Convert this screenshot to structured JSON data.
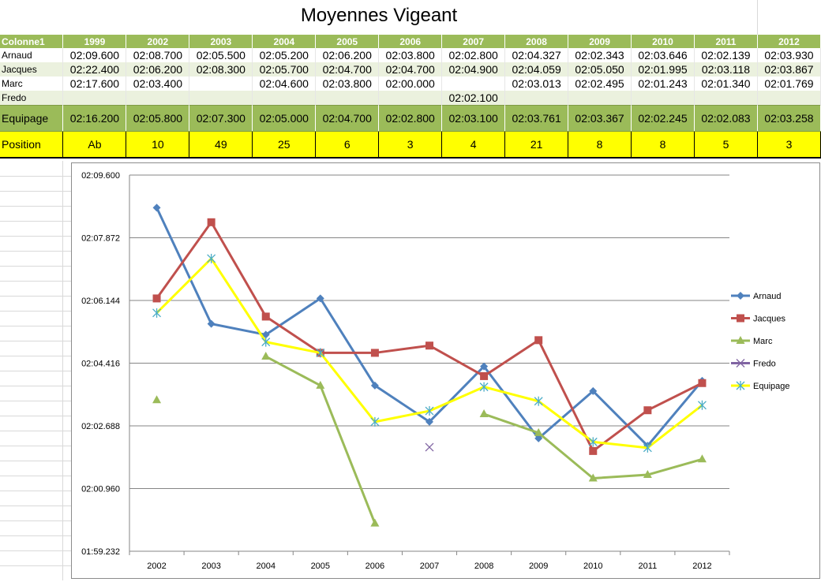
{
  "sheet": {
    "title": "Moyennes Vigeant",
    "header_first": "Colonne1",
    "years": [
      "1999",
      "2002",
      "2003",
      "2004",
      "2005",
      "2006",
      "2007",
      "2008",
      "2009",
      "2010",
      "2011",
      "2012"
    ],
    "rows": [
      {
        "name": "Arnaud",
        "values": [
          "02:09.600",
          "02:08.700",
          "02:05.500",
          "02:05.200",
          "02:06.200",
          "02:03.800",
          "02:02.800",
          "02:04.327",
          "02:02.343",
          "02:03.646",
          "02:02.139",
          "02:03.930"
        ]
      },
      {
        "name": "Jacques",
        "values": [
          "02:22.400",
          "02:06.200",
          "02:08.300",
          "02:05.700",
          "02:04.700",
          "02:04.700",
          "02:04.900",
          "02:04.059",
          "02:05.050",
          "02:01.995",
          "02:03.118",
          "02:03.867"
        ]
      },
      {
        "name": "Marc",
        "values": [
          "02:17.600",
          "02:03.400",
          "",
          "02:04.600",
          "02:03.800",
          "02:00.000",
          "",
          "02:03.013",
          "02:02.495",
          "02:01.243",
          "02:01.340",
          "02:01.769"
        ]
      },
      {
        "name": "Fredo",
        "values": [
          "",
          "",
          "",
          "",
          "",
          "",
          "02:02.100",
          "",
          "",
          "",
          "",
          ""
        ]
      }
    ],
    "equipage": {
      "name": "Equipage",
      "values": [
        "02:16.200",
        "02:05.800",
        "02:07.300",
        "02:05.000",
        "02:04.700",
        "02:02.800",
        "02:03.100",
        "02:03.761",
        "02:03.367",
        "02:02.245",
        "02:02.083",
        "02:03.258"
      ]
    },
    "position": {
      "name": "Position",
      "values": [
        "Ab",
        "10",
        "49",
        "25",
        "6",
        "3",
        "4",
        "21",
        "8",
        "8",
        "5",
        "3"
      ]
    }
  },
  "chart_data": {
    "type": "line",
    "title": "",
    "categories": [
      "2002",
      "2003",
      "2004",
      "2005",
      "2006",
      "2007",
      "2008",
      "2009",
      "2010",
      "2011",
      "2012"
    ],
    "y_unit": "seconds",
    "ylim": [
      119.232,
      129.6
    ],
    "y_ticks": [
      "01:59.232",
      "02:00.960",
      "02:02.688",
      "02:04.416",
      "02:06.144",
      "02:07.872",
      "02:09.600"
    ],
    "grid": true,
    "legend_position": "right",
    "series": [
      {
        "name": "Arnaud",
        "color": "#4f81bd",
        "marker": "diamond",
        "values": [
          128.7,
          125.5,
          125.2,
          126.2,
          123.8,
          122.8,
          124.327,
          122.343,
          123.646,
          122.139,
          123.93
        ]
      },
      {
        "name": "Jacques",
        "color": "#c0504d",
        "marker": "square",
        "values": [
          126.2,
          128.3,
          125.7,
          124.7,
          124.7,
          124.9,
          124.059,
          125.05,
          121.995,
          123.118,
          123.867
        ]
      },
      {
        "name": "Marc",
        "color": "#9bbb59",
        "marker": "triangle",
        "values": [
          123.4,
          null,
          124.6,
          123.8,
          120.0,
          null,
          123.013,
          122.495,
          121.243,
          121.34,
          121.769
        ]
      },
      {
        "name": "Fredo",
        "color": "#8064a2",
        "marker": "x",
        "values": [
          null,
          null,
          null,
          null,
          null,
          122.1,
          null,
          null,
          null,
          null,
          null
        ]
      },
      {
        "name": "Equipage",
        "color": "#ffff00",
        "marker": "star",
        "values": [
          125.8,
          127.3,
          125.0,
          124.7,
          122.8,
          123.1,
          123.761,
          123.367,
          122.245,
          122.083,
          123.258
        ]
      }
    ]
  }
}
